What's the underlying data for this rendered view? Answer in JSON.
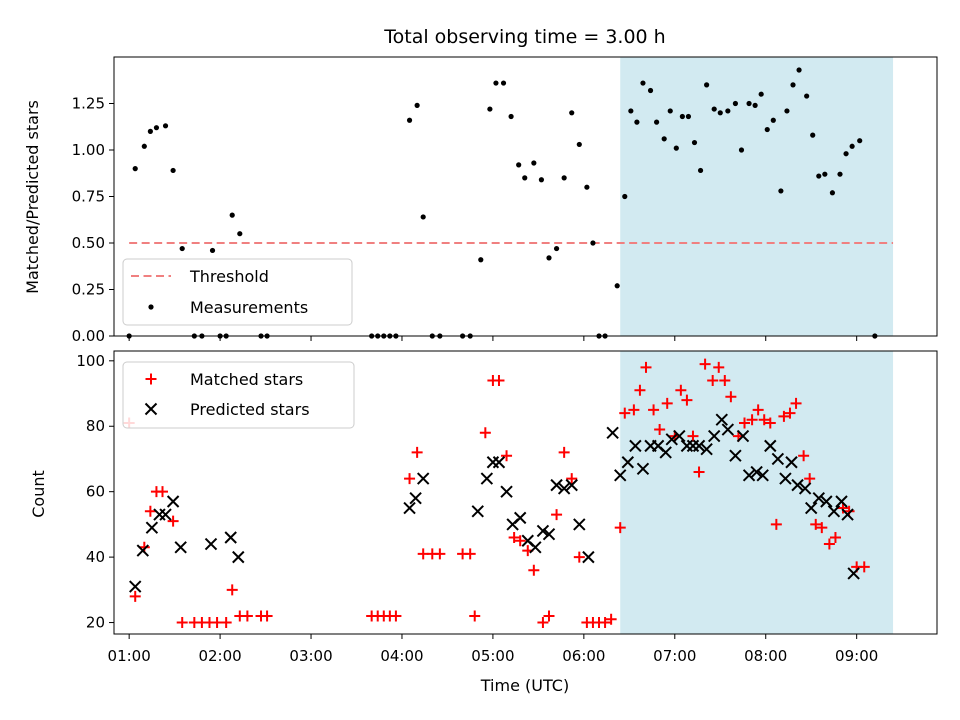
{
  "figure": {
    "title": "Total observing time = 3.00 h",
    "xlabel": "Time (UTC)",
    "x_ticks": [
      "01:00",
      "02:00",
      "03:00",
      "04:00",
      "05:00",
      "06:00",
      "07:00",
      "08:00",
      "09:00"
    ],
    "shaded_span": {
      "start": "06:24",
      "end": "09:24",
      "color": "#add8e6"
    }
  },
  "chart_data": [
    {
      "type": "scatter",
      "panel": "top",
      "ylabel": "Matched/Predicted stars",
      "xlim": [
        "00:50",
        "09:53"
      ],
      "ylim": [
        0,
        1.5
      ],
      "y_ticks": [
        "0.00",
        "0.25",
        "0.50",
        "0.75",
        "1.00",
        "1.25"
      ],
      "threshold": {
        "name": "Threshold",
        "value": 0.5,
        "x_start": "01:00",
        "x_end": "09:24",
        "color": "#f08080"
      },
      "series": [
        {
          "name": "Measurements",
          "color": "#000000",
          "marker": "dot",
          "points": [
            [
              "01:00",
              0.0
            ],
            [
              "01:04",
              0.9
            ],
            [
              "01:10",
              1.02
            ],
            [
              "01:14",
              1.1
            ],
            [
              "01:18",
              1.12
            ],
            [
              "01:24",
              1.13
            ],
            [
              "01:29",
              0.89
            ],
            [
              "01:35",
              0.47
            ],
            [
              "01:43",
              0.0
            ],
            [
              "01:48",
              0.0
            ],
            [
              "01:55",
              0.46
            ],
            [
              "02:00",
              0.0
            ],
            [
              "02:04",
              0.0
            ],
            [
              "02:08",
              0.65
            ],
            [
              "02:13",
              0.55
            ],
            [
              "02:27",
              0.0
            ],
            [
              "02:31",
              0.0
            ],
            [
              "03:40",
              0.0
            ],
            [
              "03:44",
              0.0
            ],
            [
              "03:48",
              0.0
            ],
            [
              "03:52",
              0.0
            ],
            [
              "03:56",
              0.0
            ],
            [
              "04:05",
              1.16
            ],
            [
              "04:10",
              1.24
            ],
            [
              "04:14",
              0.64
            ],
            [
              "04:20",
              0.0
            ],
            [
              "04:25",
              0.0
            ],
            [
              "04:40",
              0.0
            ],
            [
              "04:45",
              0.0
            ],
            [
              "04:52",
              0.41
            ],
            [
              "04:58",
              1.22
            ],
            [
              "05:02",
              1.36
            ],
            [
              "05:07",
              1.36
            ],
            [
              "05:12",
              1.18
            ],
            [
              "05:17",
              0.92
            ],
            [
              "05:21",
              0.85
            ],
            [
              "05:27",
              0.93
            ],
            [
              "05:32",
              0.84
            ],
            [
              "05:37",
              0.42
            ],
            [
              "05:42",
              0.47
            ],
            [
              "05:47",
              0.85
            ],
            [
              "05:52",
              1.2
            ],
            [
              "05:57",
              1.03
            ],
            [
              "06:02",
              0.8
            ],
            [
              "06:06",
              0.5
            ],
            [
              "06:10",
              0.0
            ],
            [
              "06:14",
              0.0
            ],
            [
              "06:22",
              0.27
            ],
            [
              "06:27",
              0.75
            ],
            [
              "06:31",
              1.21
            ],
            [
              "06:35",
              1.15
            ],
            [
              "06:39",
              1.36
            ],
            [
              "06:44",
              1.32
            ],
            [
              "06:48",
              1.15
            ],
            [
              "06:53",
              1.06
            ],
            [
              "06:57",
              1.21
            ],
            [
              "07:01",
              1.01
            ],
            [
              "07:05",
              1.18
            ],
            [
              "07:09",
              1.18
            ],
            [
              "07:13",
              1.04
            ],
            [
              "07:17",
              0.89
            ],
            [
              "07:21",
              1.35
            ],
            [
              "07:26",
              1.22
            ],
            [
              "07:30",
              1.2
            ],
            [
              "07:35",
              1.21
            ],
            [
              "07:40",
              1.25
            ],
            [
              "07:44",
              1.0
            ],
            [
              "07:49",
              1.25
            ],
            [
              "07:53",
              1.24
            ],
            [
              "07:57",
              1.3
            ],
            [
              "08:01",
              1.11
            ],
            [
              "08:05",
              1.16
            ],
            [
              "08:10",
              0.78
            ],
            [
              "08:14",
              1.21
            ],
            [
              "08:18",
              1.35
            ],
            [
              "08:22",
              1.43
            ],
            [
              "08:27",
              1.29
            ],
            [
              "08:31",
              1.08
            ],
            [
              "08:35",
              0.86
            ],
            [
              "08:39",
              0.87
            ],
            [
              "08:44",
              0.77
            ],
            [
              "08:49",
              0.87
            ],
            [
              "08:53",
              0.98
            ],
            [
              "08:57",
              1.02
            ],
            [
              "09:02",
              1.05
            ],
            [
              "09:12",
              0.0
            ]
          ]
        }
      ],
      "legend": {
        "position": "lower-left",
        "entries": [
          "Threshold",
          "Measurements"
        ]
      }
    },
    {
      "type": "scatter",
      "panel": "bottom",
      "ylabel": "Count",
      "xlim": [
        "00:50",
        "09:53"
      ],
      "ylim": [
        16.5,
        103
      ],
      "y_ticks": [
        "20",
        "40",
        "60",
        "80",
        "100"
      ],
      "series": [
        {
          "name": "Matched stars",
          "color": "#ff0000",
          "marker": "plus",
          "points": [
            [
              "01:00",
              81
            ],
            [
              "01:04",
              28
            ],
            [
              "01:10",
              43
            ],
            [
              "01:14",
              54
            ],
            [
              "01:18",
              60
            ],
            [
              "01:22",
              60
            ],
            [
              "01:29",
              51
            ],
            [
              "01:35",
              20
            ],
            [
              "01:43",
              20
            ],
            [
              "01:48",
              20
            ],
            [
              "01:53",
              20
            ],
            [
              "01:58",
              20
            ],
            [
              "02:04",
              20
            ],
            [
              "02:08",
              30
            ],
            [
              "02:13",
              22
            ],
            [
              "02:18",
              22
            ],
            [
              "02:27",
              22
            ],
            [
              "02:31",
              22
            ],
            [
              "03:40",
              22
            ],
            [
              "03:44",
              22
            ],
            [
              "03:48",
              22
            ],
            [
              "03:52",
              22
            ],
            [
              "03:56",
              22
            ],
            [
              "04:05",
              64
            ],
            [
              "04:10",
              72
            ],
            [
              "04:14",
              41
            ],
            [
              "04:20",
              41
            ],
            [
              "04:25",
              41
            ],
            [
              "04:40",
              41
            ],
            [
              "04:45",
              41
            ],
            [
              "04:48",
              22
            ],
            [
              "04:55",
              78
            ],
            [
              "05:00",
              94
            ],
            [
              "05:04",
              94
            ],
            [
              "05:09",
              71
            ],
            [
              "05:14",
              46
            ],
            [
              "05:18",
              45
            ],
            [
              "05:23",
              42
            ],
            [
              "05:27",
              36
            ],
            [
              "05:33",
              20
            ],
            [
              "05:37",
              22
            ],
            [
              "05:42",
              53
            ],
            [
              "05:47",
              72
            ],
            [
              "05:52",
              64
            ],
            [
              "05:57",
              40
            ],
            [
              "06:02",
              20
            ],
            [
              "06:06",
              20
            ],
            [
              "06:10",
              20
            ],
            [
              "06:14",
              20
            ],
            [
              "06:18",
              21
            ],
            [
              "06:24",
              49
            ],
            [
              "06:27",
              84
            ],
            [
              "06:33",
              85
            ],
            [
              "06:37",
              91
            ],
            [
              "06:41",
              98
            ],
            [
              "06:46",
              85
            ],
            [
              "06:50",
              79
            ],
            [
              "06:55",
              87
            ],
            [
              "07:00",
              77
            ],
            [
              "07:04",
              91
            ],
            [
              "07:08",
              88
            ],
            [
              "07:12",
              77
            ],
            [
              "07:16",
              66
            ],
            [
              "07:20",
              99
            ],
            [
              "07:25",
              94
            ],
            [
              "07:29",
              98
            ],
            [
              "07:33",
              94
            ],
            [
              "07:37",
              89
            ],
            [
              "07:42",
              77
            ],
            [
              "07:46",
              81
            ],
            [
              "07:51",
              82
            ],
            [
              "07:55",
              85
            ],
            [
              "07:59",
              82
            ],
            [
              "08:03",
              81
            ],
            [
              "08:07",
              50
            ],
            [
              "08:12",
              83
            ],
            [
              "08:16",
              84
            ],
            [
              "08:20",
              87
            ],
            [
              "08:25",
              71
            ],
            [
              "08:29",
              64
            ],
            [
              "08:33",
              50
            ],
            [
              "08:37",
              49
            ],
            [
              "08:42",
              44
            ],
            [
              "08:46",
              46
            ],
            [
              "08:51",
              55
            ],
            [
              "08:55",
              54
            ],
            [
              "09:00",
              37
            ],
            [
              "09:05",
              37
            ]
          ]
        },
        {
          "name": "Predicted stars",
          "color": "#000000",
          "marker": "x",
          "points": [
            [
              "01:04",
              31
            ],
            [
              "01:09",
              42
            ],
            [
              "01:15",
              49
            ],
            [
              "01:20",
              53
            ],
            [
              "01:24",
              53
            ],
            [
              "01:29",
              57
            ],
            [
              "01:34",
              43
            ],
            [
              "01:54",
              44
            ],
            [
              "02:07",
              46
            ],
            [
              "02:12",
              40
            ],
            [
              "04:05",
              55
            ],
            [
              "04:09",
              58
            ],
            [
              "04:14",
              64
            ],
            [
              "04:50",
              54
            ],
            [
              "04:56",
              64
            ],
            [
              "05:00",
              69
            ],
            [
              "05:04",
              69
            ],
            [
              "05:09",
              60
            ],
            [
              "05:13",
              50
            ],
            [
              "05:18",
              52
            ],
            [
              "05:23",
              45
            ],
            [
              "05:28",
              43
            ],
            [
              "05:33",
              48
            ],
            [
              "05:37",
              47
            ],
            [
              "05:42",
              62
            ],
            [
              "05:47",
              61
            ],
            [
              "05:52",
              62
            ],
            [
              "05:57",
              50
            ],
            [
              "06:03",
              40
            ],
            [
              "06:19",
              78
            ],
            [
              "06:24",
              65
            ],
            [
              "06:29",
              69
            ],
            [
              "06:34",
              74
            ],
            [
              "06:39",
              67
            ],
            [
              "06:44",
              74
            ],
            [
              "06:49",
              74
            ],
            [
              "06:54",
              72
            ],
            [
              "06:58",
              76
            ],
            [
              "07:03",
              77
            ],
            [
              "07:08",
              74
            ],
            [
              "07:12",
              74
            ],
            [
              "07:16",
              74
            ],
            [
              "07:21",
              73
            ],
            [
              "07:26",
              77
            ],
            [
              "07:31",
              82
            ],
            [
              "07:35",
              79
            ],
            [
              "07:40",
              71
            ],
            [
              "07:45",
              77
            ],
            [
              "07:49",
              65
            ],
            [
              "07:54",
              66
            ],
            [
              "07:58",
              65
            ],
            [
              "08:03",
              74
            ],
            [
              "08:08",
              70
            ],
            [
              "08:13",
              64
            ],
            [
              "08:17",
              69
            ],
            [
              "08:21",
              62
            ],
            [
              "08:26",
              61
            ],
            [
              "08:30",
              55
            ],
            [
              "08:35",
              58
            ],
            [
              "08:40",
              57
            ],
            [
              "08:45",
              54
            ],
            [
              "08:50",
              57
            ],
            [
              "08:54",
              53
            ],
            [
              "08:58",
              35
            ]
          ]
        }
      ],
      "legend": {
        "position": "top-left",
        "entries": [
          "Matched stars",
          "Predicted stars"
        ]
      }
    }
  ]
}
